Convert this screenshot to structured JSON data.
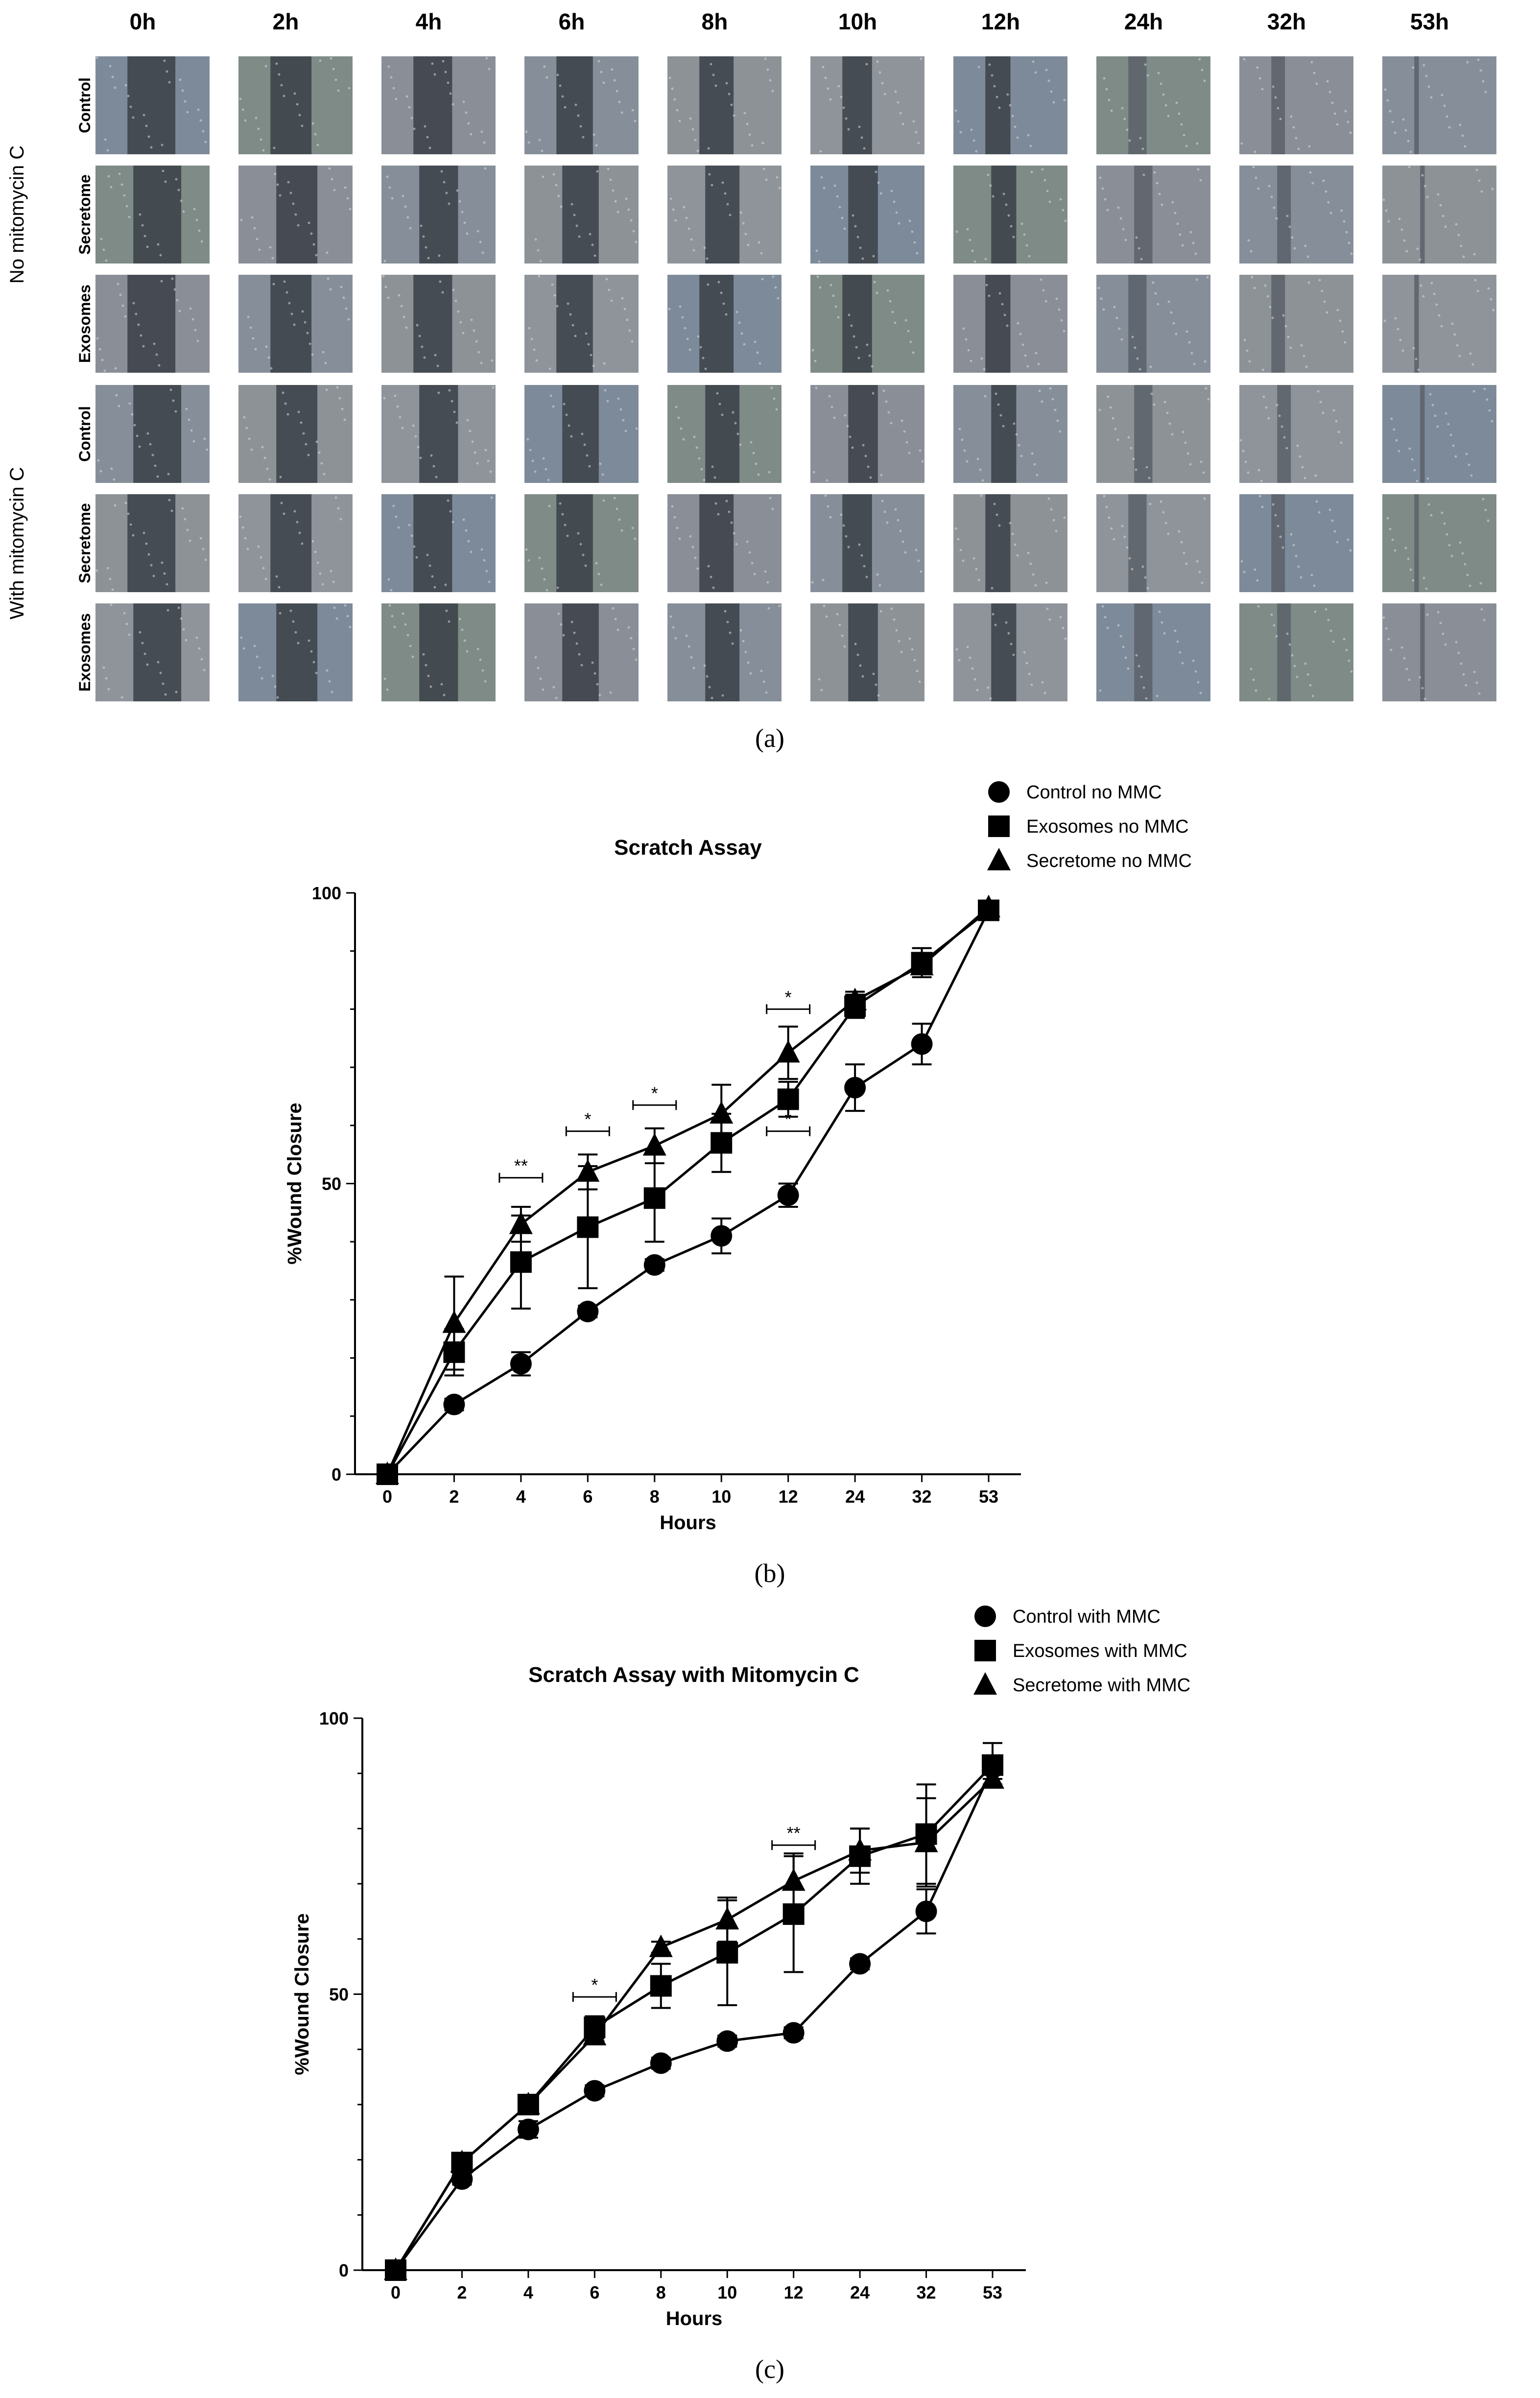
{
  "panel_a": {
    "label": "(a)",
    "time_headers": [
      "0h",
      "2h",
      "4h",
      "6h",
      "8h",
      "10h",
      "12h",
      "24h",
      "32h",
      "53h"
    ],
    "groups": [
      {
        "label": "No mitomycin C",
        "rows": [
          "Control",
          "Secretome",
          "Exosomes"
        ]
      },
      {
        "label": "With mitomycin C",
        "rows": [
          "Control",
          "Secretome",
          "Exosomes"
        ]
      }
    ]
  },
  "chart_data": [
    {
      "type": "line",
      "panel_label": "(b)",
      "title": "Scratch Assay",
      "xlabel": "Hours",
      "ylabel": "%Wound Closure",
      "categories": [
        "0",
        "2",
        "4",
        "6",
        "8",
        "10",
        "12",
        "24",
        "32",
        "53"
      ],
      "ylim": [
        0,
        100
      ],
      "yticks": [
        "0",
        "50",
        "100"
      ],
      "legend_position": "top-right",
      "series": [
        {
          "name": "Control no MMC",
          "marker": "circle",
          "values": [
            0,
            12,
            19,
            28,
            36,
            41,
            48,
            66.5,
            74,
            97
          ],
          "err": [
            0,
            1,
            2,
            1,
            1,
            3,
            2,
            4,
            3.5,
            1
          ]
        },
        {
          "name": "Exosomes no MMC",
          "marker": "square",
          "values": [
            0,
            21,
            36.5,
            42.5,
            47.5,
            57,
            64.5,
            80.5,
            88,
            97
          ],
          "err": [
            0,
            4,
            8,
            10.5,
            7.5,
            5,
            3,
            2,
            2.5,
            1
          ]
        },
        {
          "name": "Secretome no MMC",
          "marker": "triangle",
          "values": [
            0,
            26,
            43,
            52,
            56.5,
            62,
            72.5,
            81.5,
            87.5,
            97.5
          ],
          "err": [
            0,
            8,
            3,
            3,
            3,
            5,
            4.5,
            1.5,
            1.5,
            1
          ]
        }
      ],
      "significance": [
        {
          "between": [
            "4"
          ],
          "label": "**",
          "y": 51
        },
        {
          "between": [
            "6"
          ],
          "label": "*",
          "y": 59
        },
        {
          "between": [
            "8"
          ],
          "label": "*",
          "y": 63.5
        },
        {
          "between": [
            "12"
          ],
          "label": "*",
          "y": 80
        },
        {
          "between": [
            "12"
          ],
          "label": "*",
          "y": 59
        }
      ]
    },
    {
      "type": "line",
      "panel_label": "(c)",
      "title": "Scratch Assay with Mitomycin C",
      "xlabel": "Hours",
      "ylabel": "%Wound Closure",
      "categories": [
        "0",
        "2",
        "4",
        "6",
        "8",
        "10",
        "12",
        "24",
        "32",
        "53"
      ],
      "ylim": [
        0,
        100
      ],
      "yticks": [
        "0",
        "50",
        "100"
      ],
      "legend_position": "top-right",
      "series": [
        {
          "name": "Control with MMC",
          "marker": "circle",
          "values": [
            0,
            16.5,
            25.5,
            32.5,
            37.5,
            41.5,
            43,
            55.5,
            65,
            91
          ],
          "err": [
            0,
            1,
            1.5,
            1,
            1,
            1,
            1,
            1,
            4,
            2
          ]
        },
        {
          "name": "Exosomes with MMC",
          "marker": "square",
          "values": [
            0,
            19.5,
            30,
            44,
            51.5,
            57.5,
            64.5,
            75,
            79,
            91.5
          ],
          "err": [
            0,
            1,
            1,
            2,
            4,
            9.5,
            10.5,
            5,
            9,
            4
          ]
        },
        {
          "name": "Secretome with MMC",
          "marker": "triangle",
          "values": [
            0,
            19.5,
            30,
            42.5,
            58.5,
            63.5,
            70.5,
            76,
            77.5,
            89
          ],
          "err": [
            0,
            1,
            1,
            1,
            1,
            4,
            5,
            4,
            8,
            1
          ]
        }
      ],
      "significance": [
        {
          "between": [
            "6"
          ],
          "label": "*",
          "y": 49.5
        },
        {
          "between": [
            "12"
          ],
          "label": "**",
          "y": 77
        }
      ]
    }
  ]
}
